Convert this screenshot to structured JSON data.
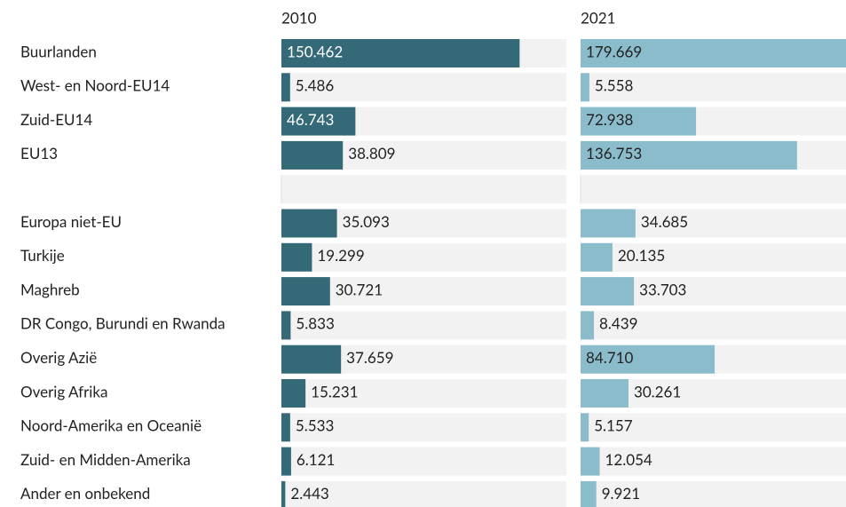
{
  "chart_data": {
    "type": "bar",
    "orientation": "horizontal",
    "categories": [
      "Buurlanden",
      "West- en Noord-EU14",
      "Zuid-EU14",
      "EU13",
      null,
      "Europa niet-EU",
      "Turkije",
      "Maghreb",
      "DR Congo, Burundi en Rwanda",
      "Overig Azië",
      "Overig Afrika",
      "Noord-Amerika en Oceanië",
      "Zuid- en Midden-Amerika",
      "Ander en onbekend"
    ],
    "xlim": [
      0,
      180000
    ],
    "series": [
      {
        "name": "2010",
        "color": "#346a78",
        "values": [
          150462,
          5486,
          46743,
          38809,
          null,
          35093,
          19299,
          30721,
          5833,
          37659,
          15231,
          5533,
          6121,
          2443
        ],
        "value_labels": [
          "150.462",
          "5.486",
          "46.743",
          "38.809",
          null,
          "35.093",
          "19.299",
          "30.721",
          "5.833",
          "37.659",
          "15.231",
          "5.533",
          "6.121",
          "2.443"
        ]
      },
      {
        "name": "2021",
        "color": "#8bbccc",
        "values": [
          179669,
          5558,
          72938,
          136753,
          null,
          34685,
          20135,
          33703,
          8439,
          84710,
          30261,
          5157,
          12054,
          9921
        ],
        "value_labels": [
          "179.669",
          "5.558",
          "72.938",
          "136.753",
          null,
          "34.685",
          "20.135",
          "33.703",
          "8.439",
          "84.710",
          "30.261",
          "5.157",
          "12.054",
          "9.921"
        ]
      }
    ]
  }
}
